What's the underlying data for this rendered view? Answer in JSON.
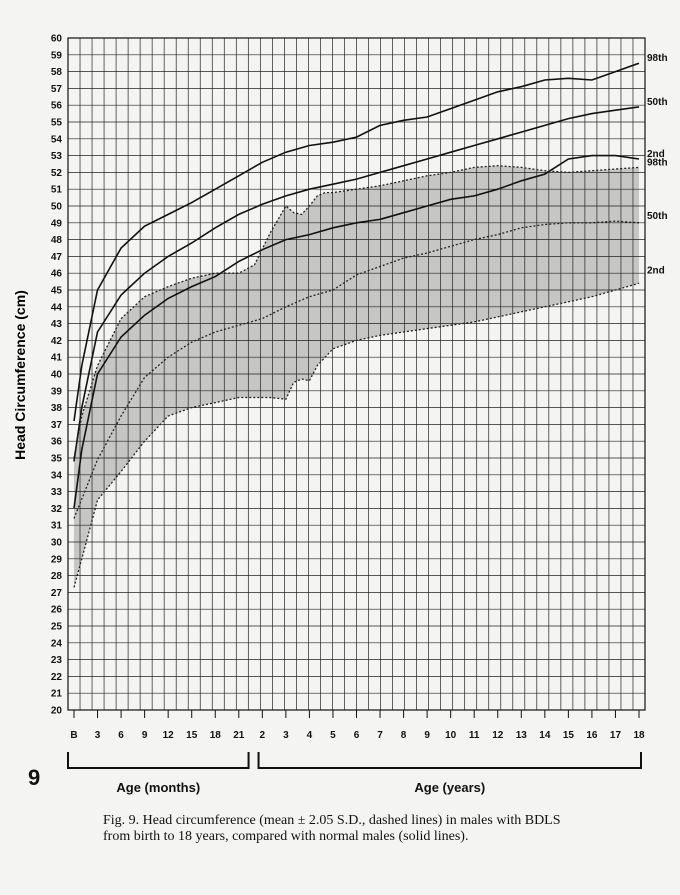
{
  "page_number": "9",
  "caption": "Fig. 9.  Head circumference (mean ± 2.05 S.D., dashed lines) in males with BDLS from birth to 18 years, compared with normal males (solid lines).",
  "chart_data": {
    "type": "line",
    "title": "",
    "ylabel": "Head Circumference (cm)",
    "ylim": [
      20,
      60
    ],
    "yticks": [
      20,
      21,
      22,
      23,
      24,
      25,
      26,
      27,
      28,
      29,
      30,
      31,
      32,
      33,
      34,
      35,
      36,
      37,
      38,
      39,
      40,
      41,
      42,
      43,
      44,
      45,
      46,
      47,
      48,
      49,
      50,
      51,
      52,
      53,
      54,
      55,
      56,
      57,
      58,
      59,
      60
    ],
    "grid": true,
    "x_groups": [
      {
        "label": "Age (months)",
        "ticks": [
          "B",
          "3",
          "6",
          "9",
          "12",
          "15",
          "18",
          "21"
        ]
      },
      {
        "label": "Age (years)",
        "ticks": [
          "2",
          "3",
          "4",
          "5",
          "6",
          "7",
          "8",
          "9",
          "10",
          "11",
          "12",
          "13",
          "14",
          "15",
          "16",
          "17",
          "18"
        ]
      }
    ],
    "x_positions": [
      0,
      3,
      6,
      9,
      12,
      15,
      18,
      21,
      24,
      27,
      30,
      33,
      36,
      39,
      42,
      45,
      48,
      51,
      54,
      57,
      60,
      63,
      66,
      69,
      72
    ],
    "x_tick_labels": [
      "B",
      "3",
      "6",
      "9",
      "12",
      "15",
      "18",
      "21",
      "2",
      "3",
      "4",
      "5",
      "6",
      "7",
      "8",
      "9",
      "10",
      "11",
      "12",
      "13",
      "14",
      "15",
      "16",
      "17",
      "18"
    ],
    "normal_males": {
      "line_style": "solid",
      "series": [
        {
          "name": "98th",
          "x": [
            0,
            1,
            3,
            6,
            9,
            12,
            15,
            18,
            21,
            24,
            27,
            30,
            33,
            36,
            39,
            42,
            45,
            48,
            51,
            54,
            57,
            60,
            63,
            66,
            69,
            72
          ],
          "y": [
            37.2,
            40.5,
            45,
            47.5,
            48.8,
            49.5,
            50.2,
            51,
            51.8,
            52.6,
            53.2,
            53.6,
            53.8,
            54.1,
            54.8,
            55.1,
            55.3,
            55.8,
            56.3,
            56.8,
            57.1,
            57.5,
            57.6,
            57.5,
            58,
            58.5
          ]
        },
        {
          "name": "50th",
          "x": [
            0,
            1,
            3,
            6,
            9,
            12,
            15,
            18,
            21,
            24,
            27,
            30,
            33,
            36,
            39,
            42,
            45,
            48,
            51,
            54,
            57,
            60,
            63,
            66,
            69,
            72
          ],
          "y": [
            34.8,
            38,
            42.5,
            44.7,
            46,
            47,
            47.8,
            48.7,
            49.5,
            50.1,
            50.6,
            51,
            51.3,
            51.6,
            52,
            52.4,
            52.8,
            53.2,
            53.6,
            54,
            54.4,
            54.8,
            55.2,
            55.5,
            55.7,
            55.9
          ]
        },
        {
          "name": "2nd",
          "x": [
            0,
            1,
            3,
            6,
            9,
            12,
            15,
            18,
            21,
            24,
            27,
            30,
            33,
            36,
            39,
            42,
            45,
            48,
            51,
            54,
            57,
            60,
            63,
            66,
            69,
            72
          ],
          "y": [
            32,
            35.5,
            40,
            42.2,
            43.5,
            44.5,
            45.2,
            45.8,
            46.7,
            47.4,
            48,
            48.3,
            48.7,
            49,
            49.2,
            49.6,
            50,
            50.4,
            50.6,
            51,
            51.5,
            51.9,
            52.8,
            53,
            53,
            52.8
          ]
        }
      ]
    },
    "bdls_males": {
      "line_style": "dashed",
      "series": [
        {
          "name": "98th",
          "x": [
            0,
            1,
            3,
            6,
            9,
            12,
            15,
            18,
            21,
            23,
            25,
            27,
            28,
            29,
            30,
            31,
            32,
            33,
            36,
            39,
            42,
            45,
            48,
            51,
            54,
            57,
            60,
            63,
            66,
            69,
            72
          ],
          "y": [
            35,
            37.5,
            40.5,
            43.3,
            44.6,
            45.2,
            45.7,
            46,
            46,
            46.5,
            48.4,
            50,
            49.6,
            49.5,
            50,
            50.6,
            50.8,
            50.8,
            51,
            51.2,
            51.5,
            51.8,
            52,
            52.3,
            52.4,
            52.3,
            52.1,
            52,
            52.1,
            52.2,
            52.3
          ]
        },
        {
          "name": "50th",
          "x": [
            0,
            3,
            6,
            9,
            12,
            15,
            18,
            21,
            24,
            27,
            30,
            33,
            36,
            39,
            42,
            45,
            48,
            51,
            54,
            57,
            60,
            63,
            66,
            69,
            72
          ],
          "y": [
            31.4,
            34.9,
            37.5,
            39.8,
            41,
            41.9,
            42.5,
            42.9,
            43.3,
            44,
            44.6,
            45,
            45.9,
            46.4,
            46.9,
            47.2,
            47.6,
            48,
            48.3,
            48.7,
            48.9,
            49,
            49,
            49.1,
            49
          ]
        },
        {
          "name": "2nd",
          "x": [
            0,
            1,
            3,
            6,
            9,
            12,
            15,
            18,
            21,
            24,
            25,
            27,
            28,
            29,
            30,
            31,
            33,
            36,
            39,
            42,
            45,
            48,
            51,
            54,
            57,
            60,
            63,
            66,
            69,
            72
          ],
          "y": [
            27.3,
            29,
            32.5,
            34.2,
            36,
            37.5,
            38,
            38.3,
            38.6,
            38.6,
            38.6,
            38.5,
            39.5,
            39.7,
            39.6,
            40.5,
            41.5,
            42,
            42.3,
            42.5,
            42.7,
            42.9,
            43.1,
            43.4,
            43.7,
            44,
            44.3,
            44.6,
            45,
            45.4
          ]
        }
      ]
    }
  }
}
